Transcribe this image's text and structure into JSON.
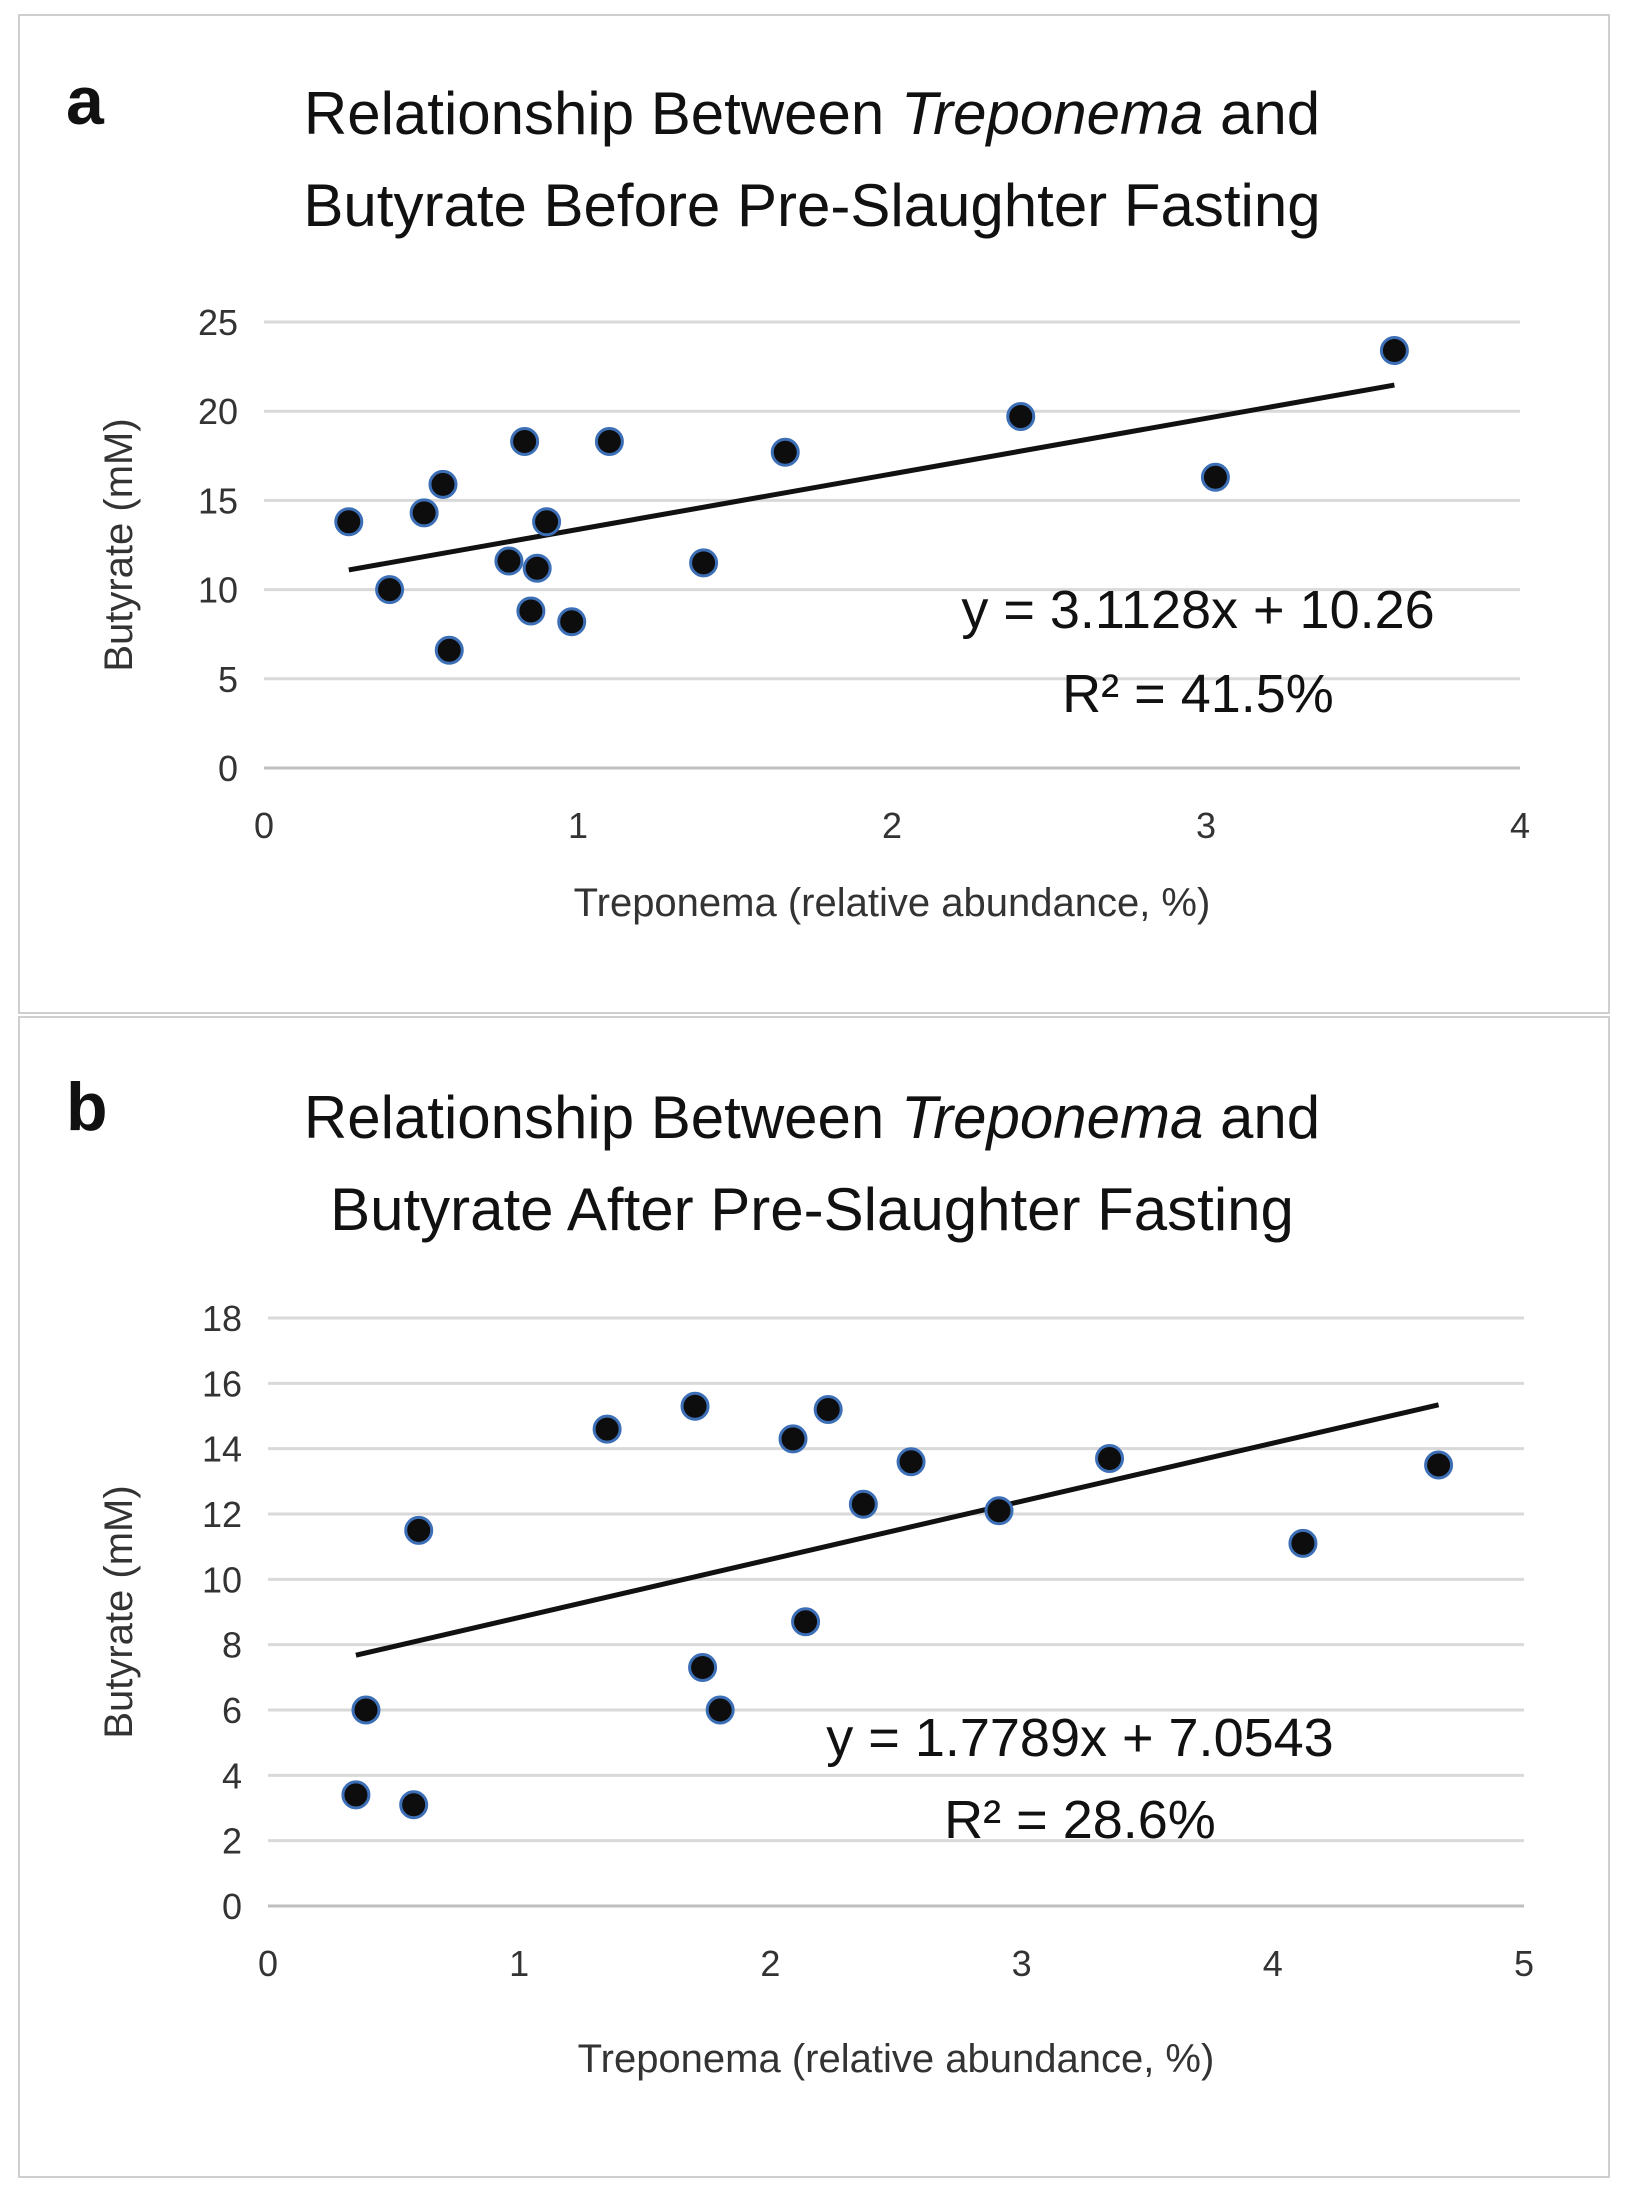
{
  "chart_data": [
    {
      "panel": "a",
      "type": "scatter",
      "title_parts": [
        {
          "text": "Relationship Between ",
          "italic": false
        },
        {
          "text": "Treponema",
          "italic": true
        },
        {
          "text": " and",
          "italic": false
        }
      ],
      "title_line2": "Butyrate Before Pre-Slaughter Fasting",
      "xlabel": "Treponema (relative abundance, %)",
      "ylabel": "Butyrate (mM)",
      "xlim": [
        0,
        4
      ],
      "ylim": [
        0,
        25
      ],
      "xticks": [
        "0",
        "1",
        "2",
        "3",
        "4"
      ],
      "yticks": [
        "0",
        "5",
        "10",
        "15",
        "20",
        "25"
      ],
      "grid": true,
      "points": [
        {
          "x": 0.27,
          "y": 13.8
        },
        {
          "x": 0.4,
          "y": 10.0
        },
        {
          "x": 0.51,
          "y": 14.3
        },
        {
          "x": 0.57,
          "y": 15.9
        },
        {
          "x": 0.59,
          "y": 6.6
        },
        {
          "x": 0.78,
          "y": 11.6
        },
        {
          "x": 0.83,
          "y": 18.3
        },
        {
          "x": 0.85,
          "y": 8.8
        },
        {
          "x": 0.87,
          "y": 11.2
        },
        {
          "x": 0.9,
          "y": 13.8
        },
        {
          "x": 0.98,
          "y": 8.2
        },
        {
          "x": 1.1,
          "y": 18.3
        },
        {
          "x": 1.4,
          "y": 11.5
        },
        {
          "x": 1.66,
          "y": 17.7
        },
        {
          "x": 2.41,
          "y": 19.7
        },
        {
          "x": 3.03,
          "y": 16.3
        },
        {
          "x": 3.6,
          "y": 23.4
        }
      ],
      "trendline": {
        "slope": 3.1128,
        "intercept": 10.26,
        "x_range": [
          0.27,
          3.6
        ]
      },
      "equation": "y = 3.1128x + 10.26",
      "r2": "R² = 41.5%"
    },
    {
      "panel": "b",
      "type": "scatter",
      "title_parts": [
        {
          "text": "Relationship Between ",
          "italic": false
        },
        {
          "text": "Treponema",
          "italic": true
        },
        {
          "text": " and",
          "italic": false
        }
      ],
      "title_line2": "Butyrate After Pre-Slaughter Fasting",
      "xlabel": "Treponema (relative abundance, %)",
      "ylabel": "Butyrate (mM)",
      "xlim": [
        0,
        5
      ],
      "ylim": [
        0,
        18
      ],
      "xticks": [
        "0",
        "1",
        "2",
        "3",
        "4",
        "5"
      ],
      "yticks": [
        "0",
        "2",
        "4",
        "6",
        "8",
        "10",
        "12",
        "14",
        "16",
        "18"
      ],
      "grid": true,
      "points": [
        {
          "x": 0.35,
          "y": 3.4
        },
        {
          "x": 0.39,
          "y": 6.0
        },
        {
          "x": 0.58,
          "y": 3.1
        },
        {
          "x": 0.6,
          "y": 11.5
        },
        {
          "x": 1.35,
          "y": 14.6
        },
        {
          "x": 1.7,
          "y": 15.3
        },
        {
          "x": 1.73,
          "y": 7.3
        },
        {
          "x": 1.8,
          "y": 6.0
        },
        {
          "x": 2.09,
          "y": 14.3
        },
        {
          "x": 2.14,
          "y": 8.7
        },
        {
          "x": 2.23,
          "y": 15.2
        },
        {
          "x": 2.37,
          "y": 12.3
        },
        {
          "x": 2.56,
          "y": 13.6
        },
        {
          "x": 2.91,
          "y": 12.1
        },
        {
          "x": 3.35,
          "y": 13.7
        },
        {
          "x": 4.12,
          "y": 11.1
        },
        {
          "x": 4.66,
          "y": 13.5
        }
      ],
      "trendline": {
        "slope": 1.7789,
        "intercept": 7.0543,
        "x_range": [
          0.35,
          4.66
        ]
      },
      "equation": "y = 1.7789x + 7.0543",
      "r2": "R² = 28.6%"
    }
  ]
}
